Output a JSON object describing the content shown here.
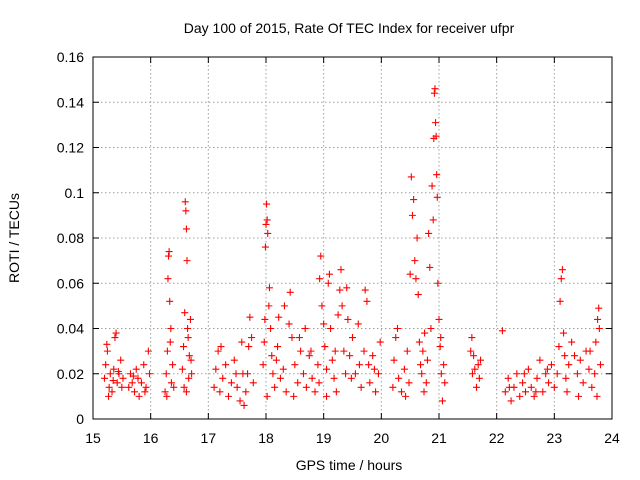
{
  "chart_data": {
    "type": "scatter",
    "title": "Day 100 of 2015, Rate Of TEC Index for receiver ufpr",
    "xlabel": "GPS time / hours",
    "ylabel": "ROTI / TECUs",
    "xlim": [
      15,
      24
    ],
    "ylim": [
      0,
      0.16
    ],
    "xticks": [
      15,
      16,
      17,
      18,
      19,
      20,
      21,
      22,
      23,
      24
    ],
    "xtick_labels": [
      "15",
      "16",
      "17",
      "18",
      "19",
      "20",
      "21",
      "22",
      "23",
      "24"
    ],
    "yticks": [
      0,
      0.02,
      0.04,
      0.06,
      0.08,
      0.1,
      0.12,
      0.14,
      0.16
    ],
    "ytick_labels": [
      "0",
      "0.02",
      "0.04",
      "0.06",
      "0.08",
      "0.1",
      "0.12",
      "0.14",
      "0.16"
    ],
    "grid": true,
    "marker": "+",
    "color": "#ff0000",
    "series": [
      {
        "name": "ROTI",
        "points": [
          [
            15.2,
            0.018
          ],
          [
            15.22,
            0.024
          ],
          [
            15.25,
            0.03
          ],
          [
            15.28,
            0.014
          ],
          [
            15.3,
            0.02
          ],
          [
            15.33,
            0.012
          ],
          [
            15.36,
            0.022
          ],
          [
            15.38,
            0.036
          ],
          [
            15.4,
            0.038
          ],
          [
            15.42,
            0.016
          ],
          [
            15.45,
            0.02
          ],
          [
            15.48,
            0.026
          ],
          [
            15.5,
            0.014
          ],
          [
            15.52,
            0.018
          ],
          [
            15.24,
            0.033
          ],
          [
            15.27,
            0.01
          ],
          [
            15.35,
            0.017
          ],
          [
            15.44,
            0.021
          ],
          [
            15.62,
            0.014
          ],
          [
            15.65,
            0.02
          ],
          [
            15.68,
            0.016
          ],
          [
            15.72,
            0.012
          ],
          [
            15.75,
            0.022
          ],
          [
            15.78,
            0.018
          ],
          [
            15.8,
            0.01
          ],
          [
            15.84,
            0.016
          ],
          [
            15.88,
            0.024
          ],
          [
            15.92,
            0.014
          ],
          [
            15.96,
            0.03
          ],
          [
            15.98,
            0.02
          ],
          [
            15.9,
            0.012
          ],
          [
            15.7,
            0.019
          ],
          [
            16.25,
            0.012
          ],
          [
            16.27,
            0.02
          ],
          [
            16.29,
            0.03
          ],
          [
            16.3,
            0.062
          ],
          [
            16.31,
            0.072
          ],
          [
            16.32,
            0.074
          ],
          [
            16.33,
            0.052
          ],
          [
            16.35,
            0.04
          ],
          [
            16.36,
            0.016
          ],
          [
            16.38,
            0.024
          ],
          [
            16.4,
            0.014
          ],
          [
            16.28,
            0.01
          ],
          [
            16.34,
            0.034
          ],
          [
            16.55,
            0.022
          ],
          [
            16.57,
            0.032
          ],
          [
            16.59,
            0.047
          ],
          [
            16.6,
            0.096
          ],
          [
            16.61,
            0.092
          ],
          [
            16.62,
            0.084
          ],
          [
            16.63,
            0.07
          ],
          [
            16.64,
            0.04
          ],
          [
            16.65,
            0.036
          ],
          [
            16.67,
            0.028
          ],
          [
            16.69,
            0.044
          ],
          [
            16.71,
            0.02
          ],
          [
            16.58,
            0.014
          ],
          [
            16.66,
            0.018
          ],
          [
            16.7,
            0.026
          ],
          [
            16.62,
            0.012
          ],
          [
            17.1,
            0.014
          ],
          [
            17.13,
            0.022
          ],
          [
            17.17,
            0.03
          ],
          [
            17.2,
            0.012
          ],
          [
            17.25,
            0.018
          ],
          [
            17.3,
            0.024
          ],
          [
            17.35,
            0.01
          ],
          [
            17.4,
            0.016
          ],
          [
            17.45,
            0.026
          ],
          [
            17.5,
            0.014
          ],
          [
            17.55,
            0.008
          ],
          [
            17.6,
            0.02
          ],
          [
            17.65,
            0.012
          ],
          [
            17.7,
            0.032
          ],
          [
            17.72,
            0.045
          ],
          [
            17.75,
            0.036
          ],
          [
            17.78,
            0.016
          ],
          [
            17.58,
            0.034
          ],
          [
            17.62,
            0.006
          ],
          [
            17.22,
            0.032
          ],
          [
            17.48,
            0.02
          ],
          [
            17.68,
            0.02
          ],
          [
            17.95,
            0.024
          ],
          [
            17.97,
            0.034
          ],
          [
            17.98,
            0.044
          ],
          [
            17.99,
            0.076
          ],
          [
            18.0,
            0.086
          ],
          [
            18.01,
            0.095
          ],
          [
            18.02,
            0.088
          ],
          [
            18.03,
            0.082
          ],
          [
            18.05,
            0.05
          ],
          [
            18.06,
            0.058
          ],
          [
            18.08,
            0.04
          ],
          [
            18.1,
            0.028
          ],
          [
            18.12,
            0.02
          ],
          [
            18.15,
            0.014
          ],
          [
            18.18,
            0.026
          ],
          [
            18.2,
            0.032
          ],
          [
            18.25,
            0.018
          ],
          [
            18.3,
            0.022
          ],
          [
            18.35,
            0.012
          ],
          [
            18.4,
            0.042
          ],
          [
            18.42,
            0.056
          ],
          [
            18.45,
            0.036
          ],
          [
            18.5,
            0.024
          ],
          [
            18.55,
            0.016
          ],
          [
            18.6,
            0.03
          ],
          [
            18.65,
            0.02
          ],
          [
            18.7,
            0.014
          ],
          [
            18.75,
            0.028
          ],
          [
            18.8,
            0.018
          ],
          [
            18.85,
            0.012
          ],
          [
            18.9,
            0.024
          ],
          [
            18.02,
            0.01
          ],
          [
            18.22,
            0.045
          ],
          [
            18.32,
            0.05
          ],
          [
            18.48,
            0.01
          ],
          [
            18.58,
            0.036
          ],
          [
            18.68,
            0.04
          ],
          [
            18.78,
            0.03
          ],
          [
            18.92,
            0.016
          ],
          [
            18.93,
            0.062
          ],
          [
            18.95,
            0.072
          ],
          [
            18.97,
            0.05
          ],
          [
            19.0,
            0.042
          ],
          [
            19.02,
            0.032
          ],
          [
            19.05,
            0.022
          ],
          [
            19.08,
            0.06
          ],
          [
            19.1,
            0.064
          ],
          [
            19.12,
            0.04
          ],
          [
            19.15,
            0.026
          ],
          [
            19.18,
            0.018
          ],
          [
            19.2,
            0.03
          ],
          [
            19.25,
            0.046
          ],
          [
            19.28,
            0.057
          ],
          [
            19.3,
            0.066
          ],
          [
            19.32,
            0.05
          ],
          [
            19.35,
            0.03
          ],
          [
            19.38,
            0.02
          ],
          [
            19.4,
            0.058
          ],
          [
            19.42,
            0.044
          ],
          [
            19.45,
            0.028
          ],
          [
            19.5,
            0.036
          ],
          [
            19.55,
            0.02
          ],
          [
            19.6,
            0.042
          ],
          [
            19.65,
            0.014
          ],
          [
            19.7,
            0.03
          ],
          [
            19.72,
            0.057
          ],
          [
            19.75,
            0.052
          ],
          [
            19.78,
            0.024
          ],
          [
            19.8,
            0.016
          ],
          [
            19.85,
            0.028
          ],
          [
            19.9,
            0.012
          ],
          [
            19.95,
            0.02
          ],
          [
            19.98,
            0.034
          ],
          [
            19.05,
            0.01
          ],
          [
            19.22,
            0.012
          ],
          [
            19.48,
            0.018
          ],
          [
            19.62,
            0.024
          ],
          [
            19.88,
            0.022
          ],
          [
            20.2,
            0.014
          ],
          [
            20.22,
            0.026
          ],
          [
            20.25,
            0.036
          ],
          [
            20.28,
            0.04
          ],
          [
            20.3,
            0.018
          ],
          [
            20.35,
            0.012
          ],
          [
            20.4,
            0.022
          ],
          [
            20.45,
            0.03
          ],
          [
            20.48,
            0.016
          ],
          [
            20.5,
            0.064
          ],
          [
            20.52,
            0.107
          ],
          [
            20.54,
            0.09
          ],
          [
            20.56,
            0.097
          ],
          [
            20.58,
            0.07
          ],
          [
            20.6,
            0.062
          ],
          [
            20.62,
            0.08
          ],
          [
            20.64,
            0.055
          ],
          [
            20.66,
            0.034
          ],
          [
            20.68,
            0.024
          ],
          [
            20.7,
            0.02
          ],
          [
            20.72,
            0.03
          ],
          [
            20.75,
            0.038
          ],
          [
            20.78,
            0.016
          ],
          [
            20.8,
            0.026
          ],
          [
            20.82,
            0.082
          ],
          [
            20.84,
            0.067
          ],
          [
            20.86,
            0.04
          ],
          [
            20.88,
            0.103
          ],
          [
            20.9,
            0.088
          ],
          [
            20.91,
            0.124
          ],
          [
            20.92,
            0.144
          ],
          [
            20.93,
            0.146
          ],
          [
            20.94,
            0.131
          ],
          [
            20.95,
            0.125
          ],
          [
            20.96,
            0.108
          ],
          [
            20.97,
            0.098
          ],
          [
            20.98,
            0.06
          ],
          [
            21.0,
            0.044
          ],
          [
            21.02,
            0.032
          ],
          [
            21.04,
            0.02
          ],
          [
            21.06,
            0.008
          ],
          [
            21.08,
            0.024
          ],
          [
            21.1,
            0.016
          ],
          [
            20.42,
            0.01
          ],
          [
            20.74,
            0.012
          ],
          [
            21.03,
            0.036
          ],
          [
            21.55,
            0.03
          ],
          [
            21.57,
            0.036
          ],
          [
            21.6,
            0.028
          ],
          [
            21.62,
            0.022
          ],
          [
            21.65,
            0.014
          ],
          [
            21.68,
            0.024
          ],
          [
            21.7,
            0.018
          ],
          [
            21.72,
            0.026
          ],
          [
            21.58,
            0.02
          ],
          [
            22.1,
            0.039
          ],
          [
            22.15,
            0.012
          ],
          [
            22.2,
            0.018
          ],
          [
            22.25,
            0.008
          ],
          [
            22.3,
            0.014
          ],
          [
            22.35,
            0.02
          ],
          [
            22.4,
            0.01
          ],
          [
            22.45,
            0.016
          ],
          [
            22.5,
            0.012
          ],
          [
            22.55,
            0.022
          ],
          [
            22.6,
            0.014
          ],
          [
            22.65,
            0.01
          ],
          [
            22.7,
            0.018
          ],
          [
            22.75,
            0.026
          ],
          [
            22.8,
            0.012
          ],
          [
            22.85,
            0.02
          ],
          [
            22.9,
            0.016
          ],
          [
            22.95,
            0.024
          ],
          [
            23.0,
            0.014
          ],
          [
            23.05,
            0.02
          ],
          [
            23.08,
            0.032
          ],
          [
            23.1,
            0.052
          ],
          [
            23.12,
            0.062
          ],
          [
            23.14,
            0.066
          ],
          [
            23.16,
            0.038
          ],
          [
            23.18,
            0.028
          ],
          [
            23.2,
            0.018
          ],
          [
            23.25,
            0.024
          ],
          [
            23.3,
            0.034
          ],
          [
            23.35,
            0.028
          ],
          [
            23.4,
            0.02
          ],
          [
            23.45,
            0.026
          ],
          [
            23.5,
            0.016
          ],
          [
            23.55,
            0.03
          ],
          [
            23.6,
            0.022
          ],
          [
            23.65,
            0.014
          ],
          [
            23.7,
            0.02
          ],
          [
            23.72,
            0.034
          ],
          [
            23.75,
            0.044
          ],
          [
            23.77,
            0.049
          ],
          [
            23.78,
            0.04
          ],
          [
            23.8,
            0.024
          ],
          [
            22.22,
            0.014
          ],
          [
            22.48,
            0.02
          ],
          [
            22.68,
            0.012
          ],
          [
            22.88,
            0.022
          ],
          [
            23.22,
            0.012
          ],
          [
            23.42,
            0.01
          ],
          [
            23.62,
            0.03
          ],
          [
            23.74,
            0.01
          ]
        ]
      }
    ]
  }
}
